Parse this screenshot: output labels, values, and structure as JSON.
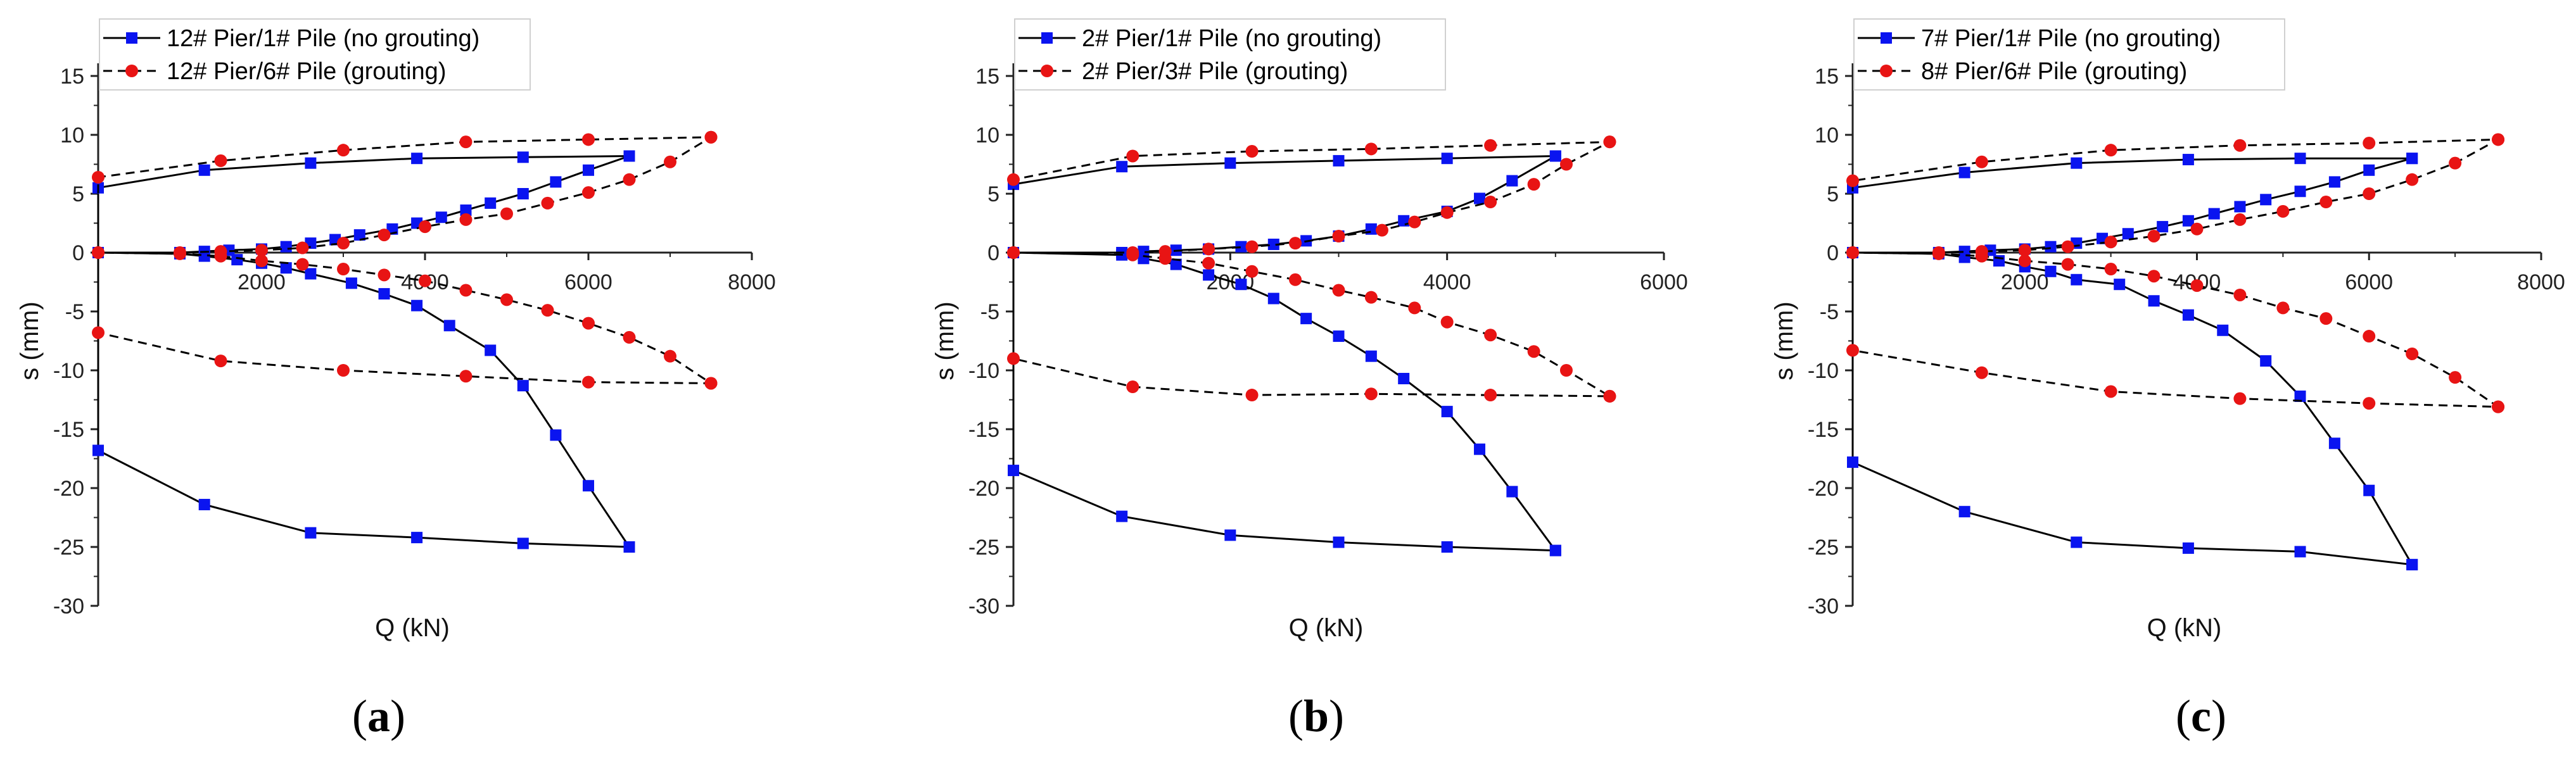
{
  "colors": {
    "no_grouting": "#0a14f0",
    "grouting": "#e81414",
    "axis": "#222222",
    "curve": "#000000"
  },
  "chart_data": [
    {
      "type": "line",
      "panel_label": "a",
      "xlabel": "Q (kN)",
      "ylabel": "s (mm)",
      "xlim": [
        0,
        8000
      ],
      "ylim": [
        -30,
        15
      ],
      "xticks": [
        2000,
        4000,
        6000,
        8000
      ],
      "yticks": [
        15,
        10,
        5,
        0,
        -5,
        -10,
        -15,
        -20,
        -25,
        -30
      ],
      "series": [
        {
          "name": "12# Pier/1# Pile (no grouting)",
          "style": "solid",
          "marker": "square",
          "color": "#0a14f0",
          "x": [
            0,
            1000,
            1300,
            1600,
            2000,
            2300,
            2600,
            2900,
            3200,
            3600,
            3900,
            4200,
            4500,
            4800,
            5200,
            5600,
            6000,
            6500,
            6500,
            5200,
            3900,
            2600,
            1300,
            0,
            0,
            1300,
            2600,
            3900,
            5200,
            6500,
            6500,
            6000,
            5600,
            5200,
            4800,
            4300,
            3900,
            3500,
            3100,
            2600,
            2300,
            2000,
            1700,
            1300,
            1000,
            0
          ],
          "y": [
            0,
            0,
            0.1,
            0.2,
            0.3,
            0.5,
            0.8,
            1.1,
            1.5,
            2.0,
            2.5,
            3.0,
            3.6,
            4.2,
            5.0,
            6.0,
            7.0,
            8.2,
            8.2,
            8.1,
            8.0,
            7.6,
            7.0,
            5.5,
            -16.8,
            -21.4,
            -23.8,
            -24.2,
            -24.7,
            -25.0,
            -25.0,
            -19.8,
            -15.5,
            -11.3,
            -8.3,
            -6.2,
            -4.5,
            -3.5,
            -2.6,
            -1.8,
            -1.3,
            -0.9,
            -0.6,
            -0.3,
            -0.1,
            0
          ]
        },
        {
          "name": "12# Pier/6# Pile (grouting)",
          "style": "dashed",
          "marker": "circle",
          "color": "#e81414",
          "x": [
            0,
            1000,
            1500,
            2000,
            2500,
            3000,
            3500,
            4000,
            4500,
            5000,
            5500,
            6000,
            6500,
            7000,
            7500,
            7500,
            6000,
            4500,
            3000,
            1500,
            0,
            0,
            1500,
            3000,
            4500,
            6000,
            7500,
            7500,
            7000,
            6500,
            6000,
            5500,
            5000,
            4500,
            4000,
            3500,
            3000,
            2500,
            2000,
            1500,
            1000,
            0
          ],
          "y": [
            0,
            0,
            0.1,
            0.2,
            0.4,
            0.8,
            1.5,
            2.2,
            2.8,
            3.3,
            4.2,
            5.1,
            6.2,
            7.7,
            9.8,
            9.8,
            9.6,
            9.4,
            8.7,
            7.8,
            6.4,
            -6.8,
            -9.2,
            -10.0,
            -10.5,
            -11.0,
            -11.1,
            -11.1,
            -8.8,
            -7.2,
            -6.0,
            -4.9,
            -4.0,
            -3.2,
            -2.4,
            -1.9,
            -1.4,
            -1.0,
            -0.7,
            -0.3,
            -0.1,
            0
          ]
        }
      ]
    },
    {
      "type": "line",
      "panel_label": "b",
      "xlabel": "Q (kN)",
      "ylabel": "s (mm)",
      "xlim": [
        0,
        6000
      ],
      "ylim": [
        -30,
        15
      ],
      "xticks": [
        2000,
        4000,
        6000
      ],
      "yticks": [
        15,
        10,
        5,
        0,
        -5,
        -10,
        -15,
        -20,
        -25,
        -30
      ],
      "series": [
        {
          "name": "2# Pier/1# Pile (no grouting)",
          "style": "solid",
          "marker": "square",
          "color": "#0a14f0",
          "x": [
            0,
            1000,
            1200,
            1500,
            1800,
            2100,
            2400,
            2700,
            3000,
            3300,
            3600,
            4000,
            4300,
            4600,
            5000,
            5000,
            4000,
            3000,
            2000,
            1000,
            0,
            0,
            1000,
            2000,
            3000,
            4000,
            5000,
            5000,
            4600,
            4300,
            4000,
            3600,
            3300,
            3000,
            2700,
            2400,
            2100,
            1800,
            1500,
            1200,
            1000,
            0
          ],
          "y": [
            0,
            0,
            0.1,
            0.2,
            0.3,
            0.5,
            0.7,
            1.0,
            1.4,
            2.0,
            2.7,
            3.5,
            4.6,
            6.1,
            8.2,
            8.2,
            8.0,
            7.8,
            7.6,
            7.3,
            5.8,
            -18.5,
            -22.4,
            -24.0,
            -24.6,
            -25.0,
            -25.3,
            -25.3,
            -20.3,
            -16.7,
            -13.5,
            -10.7,
            -8.8,
            -7.1,
            -5.6,
            -3.9,
            -2.7,
            -1.9,
            -1.0,
            -0.5,
            -0.2,
            0
          ]
        },
        {
          "name": "2# Pier/3# Pile (grouting)",
          "style": "dashed",
          "marker": "circle",
          "color": "#e81414",
          "x": [
            0,
            1100,
            1400,
            1800,
            2200,
            2600,
            3000,
            3400,
            3700,
            4000,
            4400,
            4800,
            5100,
            5500,
            5500,
            4400,
            3300,
            2200,
            1100,
            0,
            0,
            1100,
            2200,
            3300,
            4400,
            5500,
            5500,
            5100,
            4800,
            4400,
            4000,
            3700,
            3300,
            3000,
            2600,
            2200,
            1800,
            1400,
            1100,
            0
          ],
          "y": [
            0,
            0,
            0.1,
            0.3,
            0.5,
            0.8,
            1.4,
            1.9,
            2.6,
            3.4,
            4.3,
            5.8,
            7.5,
            9.4,
            9.4,
            9.1,
            8.8,
            8.6,
            8.2,
            6.2,
            -9.0,
            -11.4,
            -12.1,
            -12.0,
            -12.1,
            -12.2,
            -12.2,
            -10.0,
            -8.4,
            -7.0,
            -5.9,
            -4.7,
            -3.8,
            -3.2,
            -2.3,
            -1.6,
            -0.9,
            -0.5,
            -0.2,
            0
          ]
        }
      ]
    },
    {
      "type": "line",
      "panel_label": "c",
      "xlabel": "Q (kN)",
      "ylabel": "s (mm)",
      "xlim": [
        0,
        8000
      ],
      "ylim": [
        -30,
        15
      ],
      "xticks": [
        2000,
        4000,
        6000,
        8000
      ],
      "yticks": [
        15,
        10,
        5,
        0,
        -5,
        -10,
        -15,
        -20,
        -25,
        -30
      ],
      "series": [
        {
          "name": "7# Pier/1# Pile (no grouting)",
          "style": "solid",
          "marker": "square",
          "color": "#0a14f0",
          "x": [
            0,
            1000,
            1300,
            1600,
            2000,
            2300,
            2600,
            2900,
            3200,
            3600,
            3900,
            4200,
            4500,
            4800,
            5200,
            5600,
            6000,
            6500,
            6500,
            5200,
            3900,
            2600,
            1300,
            0,
            0,
            1300,
            2600,
            3900,
            5200,
            6500,
            6500,
            6000,
            5600,
            5200,
            4800,
            4300,
            3900,
            3500,
            3100,
            2600,
            2300,
            2000,
            1700,
            1300,
            1000,
            0
          ],
          "y": [
            0,
            0,
            0.1,
            0.2,
            0.3,
            0.5,
            0.8,
            1.2,
            1.6,
            2.2,
            2.7,
            3.3,
            3.9,
            4.5,
            5.2,
            6.0,
            7.0,
            8.0,
            8.0,
            8.0,
            7.9,
            7.6,
            6.8,
            5.5,
            -17.8,
            -22.0,
            -24.6,
            -25.1,
            -25.4,
            -26.5,
            -26.5,
            -20.2,
            -16.2,
            -12.2,
            -9.2,
            -6.6,
            -5.3,
            -4.1,
            -2.7,
            -2.3,
            -1.6,
            -1.2,
            -0.7,
            -0.4,
            -0.1,
            0
          ]
        },
        {
          "name": "8# Pier/6# Pile (grouting)",
          "style": "dashed",
          "marker": "circle",
          "color": "#e81414",
          "x": [
            0,
            1000,
            1500,
            2000,
            2500,
            3000,
            3500,
            4000,
            4500,
            5000,
            5500,
            6000,
            6500,
            7000,
            7500,
            7500,
            6000,
            4500,
            3000,
            1500,
            0,
            0,
            1500,
            3000,
            4500,
            6000,
            7500,
            7500,
            7000,
            6500,
            6000,
            5500,
            5000,
            4500,
            4000,
            3500,
            3000,
            2500,
            2000,
            1500,
            1000,
            0
          ],
          "y": [
            0,
            0,
            0.1,
            0.2,
            0.5,
            0.9,
            1.4,
            2.0,
            2.8,
            3.5,
            4.3,
            5.0,
            6.2,
            7.6,
            9.6,
            9.6,
            9.3,
            9.1,
            8.7,
            7.7,
            6.1,
            -8.3,
            -10.2,
            -11.8,
            -12.4,
            -12.8,
            -13.1,
            -13.1,
            -10.6,
            -8.6,
            -7.1,
            -5.6,
            -4.7,
            -3.6,
            -2.8,
            -2.0,
            -1.4,
            -1.0,
            -0.7,
            -0.3,
            -0.1,
            0
          ]
        }
      ]
    }
  ]
}
